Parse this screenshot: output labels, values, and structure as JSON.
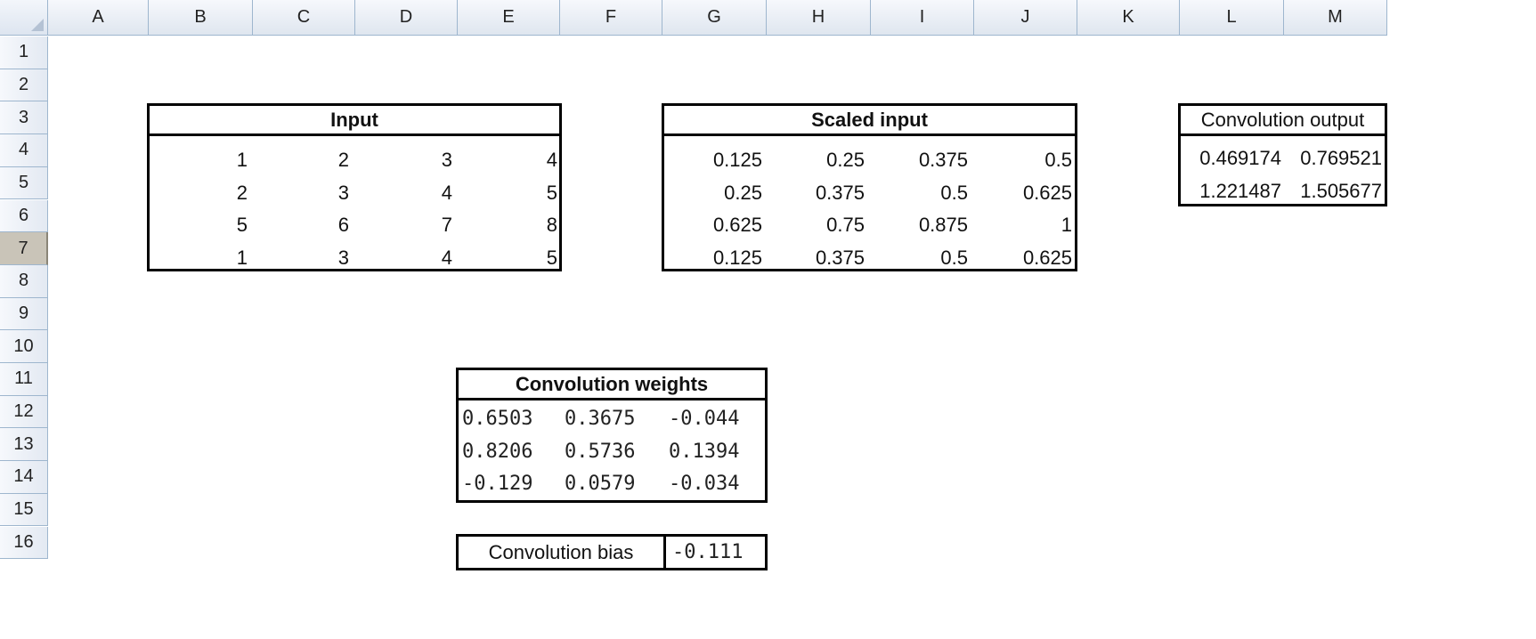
{
  "columns": [
    "A",
    "B",
    "C",
    "D",
    "E",
    "F",
    "G",
    "H",
    "I",
    "J",
    "K",
    "L",
    "M"
  ],
  "rows": [
    "1",
    "2",
    "3",
    "4",
    "5",
    "6",
    "7",
    "8",
    "9",
    "10",
    "11",
    "12",
    "13",
    "14",
    "15",
    "16"
  ],
  "active_row": "7",
  "input": {
    "title": "Input",
    "values": [
      [
        "1",
        "2",
        "3",
        "4"
      ],
      [
        "2",
        "3",
        "4",
        "5"
      ],
      [
        "5",
        "6",
        "7",
        "8"
      ],
      [
        "1",
        "3",
        "4",
        "5"
      ]
    ]
  },
  "scaled_input": {
    "title": "Scaled input",
    "values": [
      [
        "0.125",
        "0.25",
        "0.375",
        "0.5"
      ],
      [
        "0.25",
        "0.375",
        "0.5",
        "0.625"
      ],
      [
        "0.625",
        "0.75",
        "0.875",
        "1"
      ],
      [
        "0.125",
        "0.375",
        "0.5",
        "0.625"
      ]
    ]
  },
  "conv_output": {
    "title": "Convolution output",
    "values": [
      [
        "0.469174",
        "0.769521"
      ],
      [
        "1.221487",
        "1.505677"
      ]
    ]
  },
  "conv_weights": {
    "title": "Convolution weights",
    "values": [
      [
        "0.6503",
        "0.3675",
        "-0.044"
      ],
      [
        "0.8206",
        "0.5736",
        "0.1394"
      ],
      [
        "-0.129",
        "0.0579",
        "-0.034"
      ]
    ]
  },
  "conv_bias": {
    "label": "Convolution bias",
    "value": "-0.111"
  }
}
